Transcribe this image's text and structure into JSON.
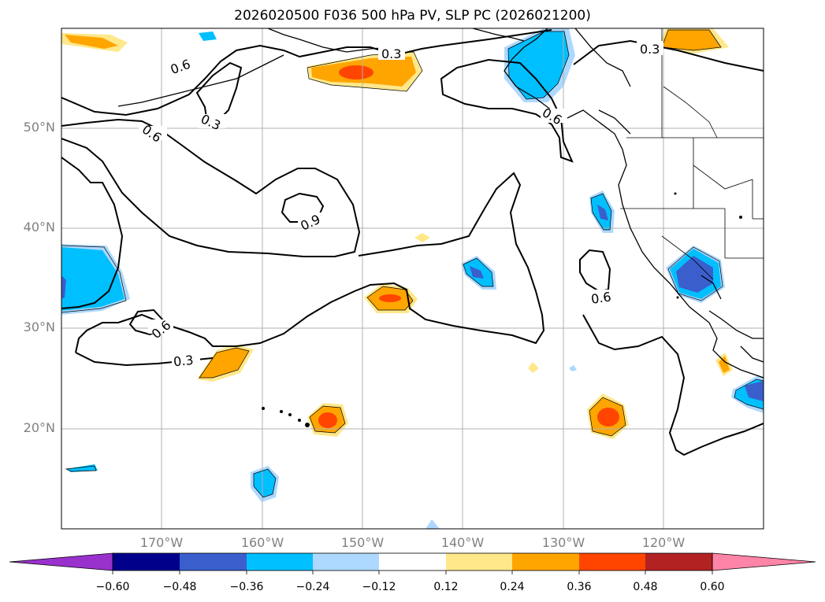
{
  "title": "2026020500 F036 500 hPa PV, SLP PC (2026021200)",
  "lat_labels": [
    "50°N",
    "40°N",
    "30°N",
    "20°N"
  ],
  "lon_labels": [
    "170°W",
    "160°W",
    "150°W",
    "140°W",
    "130°W",
    "120°W"
  ],
  "map": {
    "extent": {
      "lon": [
        -180,
        -110
      ],
      "lat": [
        10,
        60
      ]
    },
    "grid_lons": [
      -170,
      -160,
      -150,
      -140,
      -130,
      -120
    ],
    "grid_lats": [
      20,
      30,
      40,
      50
    ],
    "contour_labels": [
      "0.6",
      "0.3",
      "0.3",
      "0.6",
      "0.6",
      "0.3",
      "0.9",
      "0.6",
      "0.6",
      "0.3"
    ]
  },
  "colorbar": {
    "ticks": [
      "−0.60",
      "−0.48",
      "−0.36",
      "−0.24",
      "−0.12",
      "0.12",
      "0.24",
      "0.36",
      "0.48",
      "0.60"
    ],
    "colors": [
      "#9932cc",
      "#00008b",
      "#3a5fcd",
      "#00bfff",
      "#add8ff",
      "#ffffff",
      "#ffe88a",
      "#ffa500",
      "#ff4500",
      "#b22222",
      "#ff85a8"
    ]
  },
  "fill_colors": {
    "neg_light": "#add8ff",
    "neg_mid": "#00bfff",
    "neg_strong": "#3a5fcd",
    "neg_extreme": "#00008b",
    "pos_light": "#ffe88a",
    "pos_mid": "#ffa500",
    "pos_strong": "#ff4500"
  }
}
